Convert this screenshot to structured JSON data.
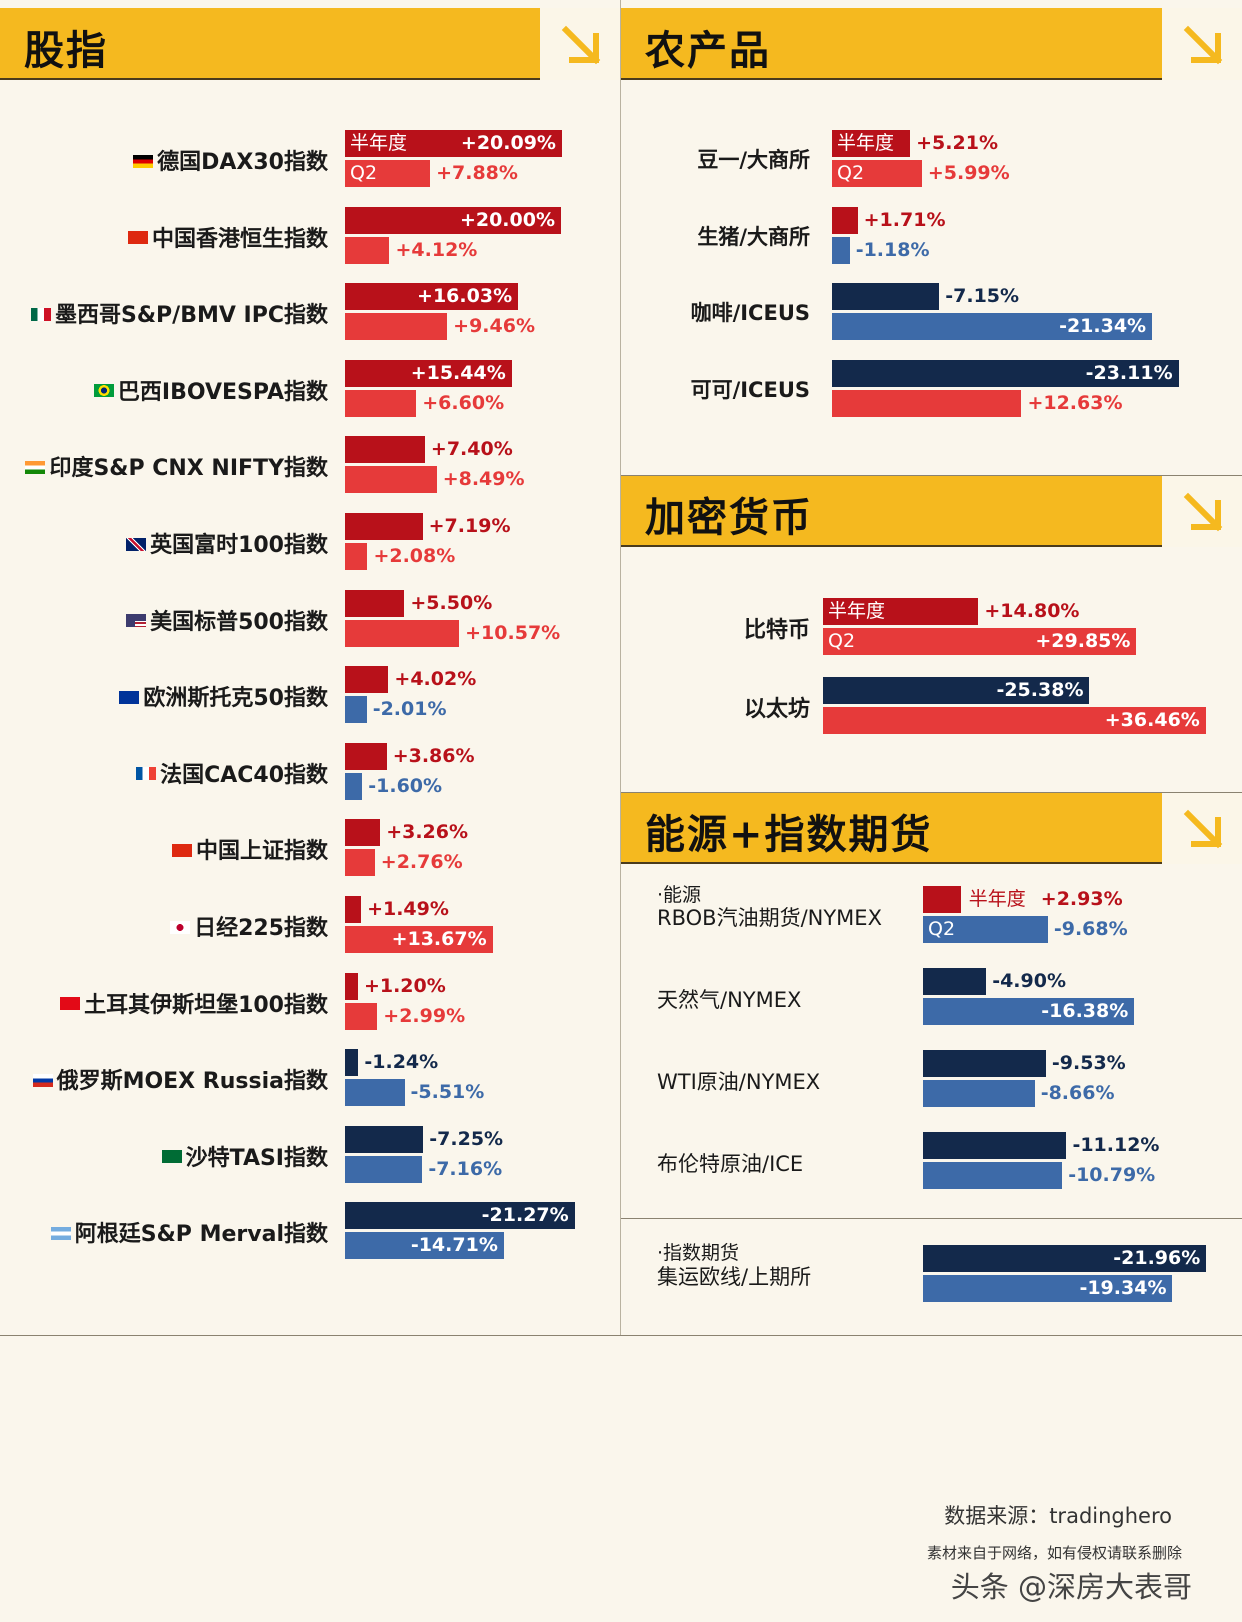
{
  "colors": {
    "half_pos": "#b8111a",
    "q2_pos": "#e63a3a",
    "half_neg": "#13294b",
    "q2_neg": "#3d6aa8",
    "header": "#f5b91f"
  },
  "labels": {
    "half": "半年度",
    "q2": "Q2"
  },
  "stocks": {
    "title": "股指",
    "chart_data": {
      "type": "bar",
      "categories": [
        "德国DAX30指数",
        "中国香港恒生指数",
        "墨西哥S&P/BMV IPC指数",
        "巴西IBOVESPA指数",
        "印度S&P CNX NIFTY指数",
        "英国富时100指数",
        "美国标普500指数",
        "欧洲斯托克50指数",
        "法国CAC40指数",
        "中国上证指数",
        "日经225指数",
        "土耳其伊斯坦堡100指数",
        "俄罗斯MOEX Russia指数",
        "沙特TASI指数",
        "阿根廷S&P Merval指数"
      ],
      "series": [
        {
          "name": "半年度",
          "values": [
            20.09,
            20.0,
            16.03,
            15.44,
            7.4,
            7.19,
            5.5,
            4.02,
            3.86,
            3.26,
            1.49,
            1.2,
            -1.24,
            -7.25,
            -21.27
          ],
          "labels": [
            "+20.09%",
            "+20.00%",
            "+16.03%",
            "+15.44%",
            "+7.40%",
            "+7.19%",
            "+5.50%",
            "+4.02%",
            "+3.86%",
            "+3.26%",
            "+1.49%",
            "+1.20%",
            "-1.24%",
            "-7.25%",
            "-21.27%"
          ]
        },
        {
          "name": "Q2",
          "values": [
            7.88,
            4.12,
            9.46,
            6.6,
            8.49,
            2.08,
            10.57,
            -2.01,
            -1.6,
            2.76,
            13.67,
            2.99,
            -5.51,
            -7.16,
            -14.71
          ],
          "labels": [
            "+7.88%",
            "+4.12%",
            "+9.46%",
            "+6.60%",
            "+8.49%",
            "+2.08%",
            "+10.57%",
            "-2.01%",
            "-1.60%",
            "+2.76%",
            "+13.67%",
            "+2.99%",
            "-5.51%",
            "-7.16%",
            "-14.71%"
          ]
        }
      ],
      "flags": [
        "de",
        "hk",
        "mx",
        "br",
        "in",
        "uk",
        "us",
        "eu",
        "fr",
        "cn",
        "jp",
        "tr",
        "ru",
        "sa",
        "ar"
      ]
    }
  },
  "agri": {
    "title": "农产品",
    "chart_data": {
      "type": "bar",
      "categories": [
        "豆一/大商所",
        "生猪/大商所",
        "咖啡/ICEUS",
        "可可/ICEUS"
      ],
      "series": [
        {
          "name": "半年度",
          "values": [
            5.21,
            1.71,
            -7.15,
            -23.11
          ],
          "labels": [
            "+5.21%",
            "+1.71%",
            "-7.15%",
            "-23.11%"
          ]
        },
        {
          "name": "Q2",
          "values": [
            5.99,
            -1.18,
            -21.34,
            12.63
          ],
          "labels": [
            "+5.99%",
            "-1.18%",
            "-21.34%",
            "+12.63%"
          ]
        }
      ]
    }
  },
  "crypto": {
    "title": "加密货币",
    "chart_data": {
      "type": "bar",
      "categories": [
        "比特币",
        "以太坊"
      ],
      "series": [
        {
          "name": "半年度",
          "values": [
            14.8,
            -25.38
          ],
          "labels": [
            "+14.80%",
            "-25.38%"
          ]
        },
        {
          "name": "Q2",
          "values": [
            29.85,
            36.46
          ],
          "labels": [
            "+29.85%",
            "+36.46%"
          ]
        }
      ]
    }
  },
  "energy": {
    "title": "能源+指数期货",
    "section1": "·能源",
    "section2": "·指数期货",
    "chart_data": {
      "type": "bar",
      "categories": [
        "RBOB汽油期货/NYMEX",
        "天然气/NYMEX",
        "WTI原油/NYMEX",
        "布伦特原油/ICE",
        "集运欧线/上期所"
      ],
      "series": [
        {
          "name": "半年度",
          "values": [
            2.93,
            -4.9,
            -9.53,
            -11.12,
            -21.96
          ],
          "labels": [
            "+2.93%",
            "-4.90%",
            "-9.53%",
            "-11.12%",
            "-21.96%"
          ]
        },
        {
          "name": "Q2",
          "values": [
            -9.68,
            -16.38,
            -8.66,
            -10.79,
            -19.34
          ],
          "labels": [
            "-9.68%",
            "-16.38%",
            "-8.66%",
            "-10.79%",
            "-19.34%"
          ]
        }
      ]
    }
  },
  "footer": {
    "source": "数据来源：tradinghero",
    "disclaimer": "素材来自于网络，如有侵权请联系删除",
    "watermark": "头条 @深房大表哥"
  }
}
